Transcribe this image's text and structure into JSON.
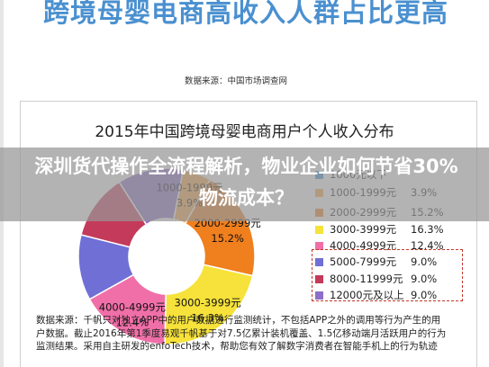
{
  "headline": "跨境母婴电商高收入人群占比更高",
  "source": "数据来源：中国市场调查网",
  "overlay_title": "深圳货代操作全流程解析，物业企业如何节省30%物流成本？",
  "chart_data": {
    "type": "pie",
    "title": "2015年中国跨境母婴电商用户个人收入分布",
    "categories": [
      "1000元以下",
      "1000-1999元",
      "2000-2999元",
      "3000-3999元",
      "4000-4999元",
      "5000-7999元",
      "8000-11999元",
      "12000元及以上"
    ],
    "values": [
      null,
      3.9,
      15.2,
      16.3,
      12.4,
      9.0,
      9.0,
      9.0
    ],
    "value_labels": [
      "",
      "3.9%",
      "15.2%",
      "16.3%",
      "12.4%",
      "9.0%",
      "9.0%",
      "9.0%"
    ],
    "colors": [
      "#3f8fd8",
      "#f7a64a",
      "#f07f1e",
      "#f6e23a",
      "#f06fa8",
      "#6f6fd6",
      "#c43a5a",
      "#8d6ec9"
    ],
    "donut": true,
    "legend_position": "right",
    "slice_labels": [
      {
        "category": "1000-1999元",
        "value": "3.9%"
      },
      {
        "category": "2000-2999元",
        "value": "15.2%"
      },
      {
        "category": "3000-3999元",
        "value": "16.3%"
      },
      {
        "category": "4000-4999元",
        "value": "12.4%"
      }
    ]
  },
  "footnote": [
    "数据来源：千帆只对独立APP中的用户数据进行监测统计，不包括APP之外的调用等行为产生的用",
    "户数据。截止2016年第1季度易观千帆基于对7.5亿累计装机覆盖、1.5亿移动端月活跃用户的行为",
    "监测结果。采用自主研发的enfoTech技术，帮助您有效了解数字消费者在智能手机上的行为轨迹"
  ]
}
